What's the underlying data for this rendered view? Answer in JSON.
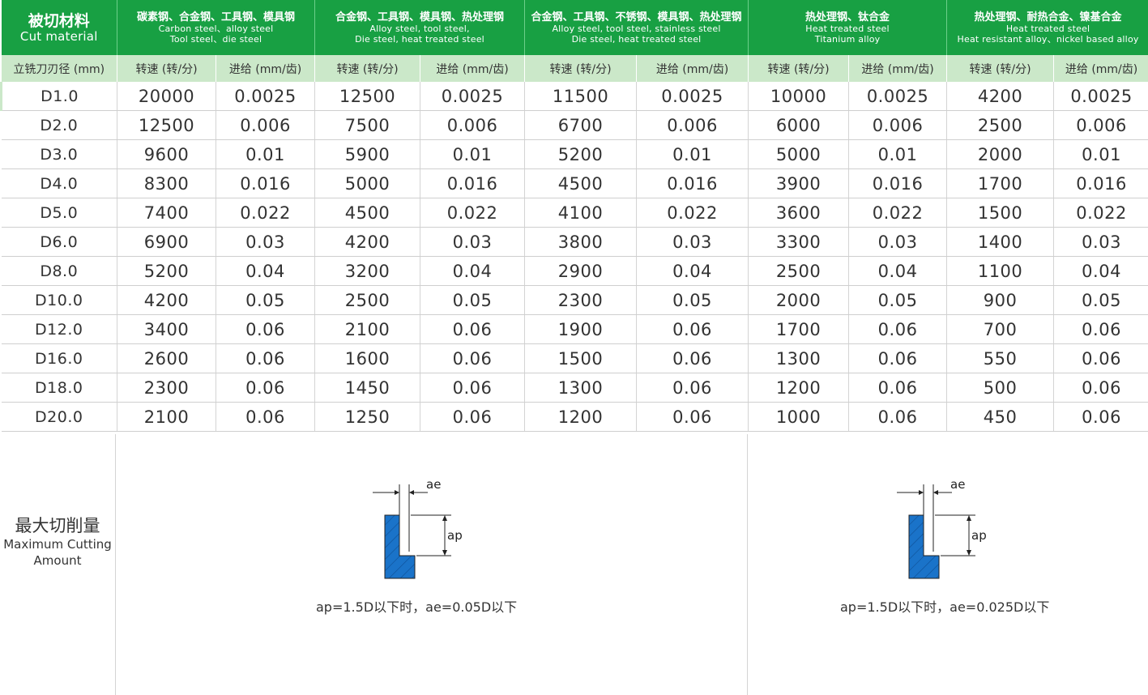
{
  "header": {
    "first": {
      "zh": "被切材料",
      "en": "Cut material"
    },
    "groups": [
      {
        "zh": "碳素钢、合金钢、工具钢、模具钢",
        "en1": "Carbon steel、alloy steel",
        "en2": "Tool steel、die steel"
      },
      {
        "zh": "合金钢、工具钢、模具钢、热处理钢",
        "en1": "Alloy steel, tool steel,",
        "en2": "Die steel, heat treated steel"
      },
      {
        "zh": "合金钢、工具钢、不锈钢、模具钢、热处理钢",
        "en1": "Alloy steel, tool steel, stainless steel",
        "en2": "Die steel, heat treated steel"
      },
      {
        "zh": "热处理钢、钛合金",
        "en1": "Heat treated steel",
        "en2": "Titanium alloy"
      },
      {
        "zh": "热处理钢、耐热合金、镍基合金",
        "en1": "Heat treated steel",
        "en2": "Heat resistant alloy、nickel based alloy"
      }
    ]
  },
  "subheader": {
    "diameter": "立铣刀刃径 (mm)",
    "speed": "转速 (转/分)",
    "feed": "进给 (mm/齿)"
  },
  "rows": [
    [
      "D1.0",
      "20000",
      "0.0025",
      "12500",
      "0.0025",
      "11500",
      "0.0025",
      "10000",
      "0.0025",
      "4200",
      "0.0025"
    ],
    [
      "D2.0",
      "12500",
      "0.006",
      "7500",
      "0.006",
      "6700",
      "0.006",
      "6000",
      "0.006",
      "2500",
      "0.006"
    ],
    [
      "D3.0",
      "9600",
      "0.01",
      "5900",
      "0.01",
      "5200",
      "0.01",
      "5000",
      "0.01",
      "2000",
      "0.01"
    ],
    [
      "D4.0",
      "8300",
      "0.016",
      "5000",
      "0.016",
      "4500",
      "0.016",
      "3900",
      "0.016",
      "1700",
      "0.016"
    ],
    [
      "D5.0",
      "7400",
      "0.022",
      "4500",
      "0.022",
      "4100",
      "0.022",
      "3600",
      "0.022",
      "1500",
      "0.022"
    ],
    [
      "D6.0",
      "6900",
      "0.03",
      "4200",
      "0.03",
      "3800",
      "0.03",
      "3300",
      "0.03",
      "1400",
      "0.03"
    ],
    [
      "D8.0",
      "5200",
      "0.04",
      "3200",
      "0.04",
      "2900",
      "0.04",
      "2500",
      "0.04",
      "1100",
      "0.04"
    ],
    [
      "D10.0",
      "4200",
      "0.05",
      "2500",
      "0.05",
      "2300",
      "0.05",
      "2000",
      "0.05",
      "900",
      "0.05"
    ],
    [
      "D12.0",
      "3400",
      "0.06",
      "2100",
      "0.06",
      "1900",
      "0.06",
      "1700",
      "0.06",
      "700",
      "0.06"
    ],
    [
      "D16.0",
      "2600",
      "0.06",
      "1600",
      "0.06",
      "1500",
      "0.06",
      "1300",
      "0.06",
      "550",
      "0.06"
    ],
    [
      "D18.0",
      "2300",
      "0.06",
      "1450",
      "0.06",
      "1300",
      "0.06",
      "1200",
      "0.06",
      "500",
      "0.06"
    ],
    [
      "D20.0",
      "2100",
      "0.06",
      "1250",
      "0.06",
      "1200",
      "0.06",
      "1000",
      "0.06",
      "450",
      "0.06"
    ]
  ],
  "max_cut": {
    "zh": "最大切削量",
    "en1": "Maximum Cutting",
    "en2": "Amount",
    "diagram_labels": {
      "ae": "ae",
      "ap": "ap"
    },
    "formula_left": "ap=1.5D以下时，ae=0.05D以下",
    "formula_right": "ap=1.5D以下时，ae=0.025D以下"
  },
  "colors": {
    "header_green": "#18a043",
    "subheader_green": "#cbe8c9",
    "diagram_blue": "#1a73c9"
  }
}
